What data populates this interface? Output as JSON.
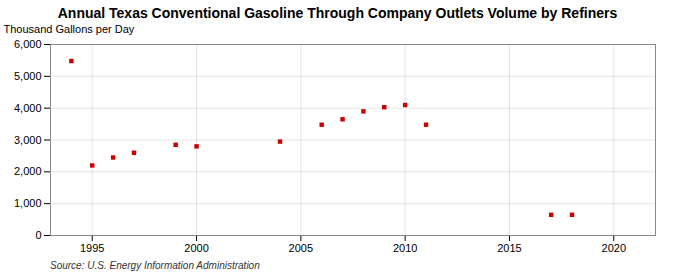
{
  "chart_data": {
    "type": "scatter",
    "title": "Annual Texas Conventional Gasoline Through Company Outlets Volume by Refiners",
    "ylabel": "Thousand Gallons per Day",
    "caption": "Source: U.S. Energy Information Administration",
    "x": [
      1994,
      1995,
      1996,
      1997,
      1999,
      2000,
      2004,
      2006,
      2007,
      2008,
      2009,
      2010,
      2011,
      2017,
      2018
    ],
    "values": [
      5480,
      2200,
      2450,
      2600,
      2850,
      2800,
      2950,
      3480,
      3650,
      3900,
      4030,
      4100,
      3480,
      650,
      650
    ],
    "color": "#cc0000",
    "marker": "square",
    "xlim": [
      1993,
      2022
    ],
    "ylim": [
      0,
      6000
    ],
    "xticks": [
      1995,
      2000,
      2005,
      2010,
      2015,
      2020
    ],
    "yticks": [
      0,
      {
        "value": 1000,
        "label": "1,000"
      },
      {
        "value": 2000,
        "label": "2,000"
      },
      {
        "value": 3000,
        "label": "3,000"
      },
      {
        "value": 4000,
        "label": "4,000"
      },
      {
        "value": 5000,
        "label": "5,000"
      },
      {
        "value": 6000,
        "label": "6,000"
      }
    ],
    "grid": true
  }
}
